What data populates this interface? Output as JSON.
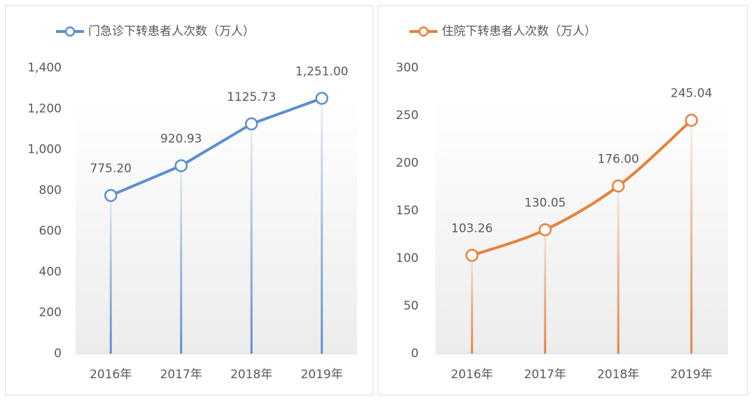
{
  "chart_data": [
    {
      "type": "line",
      "categories": [
        "2016年",
        "2017年",
        "2018年",
        "2019年"
      ],
      "series": [
        {
          "name": "门急诊下转患者人次数（万人）",
          "color": "#5b8fd0",
          "values": [
            775.2,
            920.93,
            1125.73,
            1251.0
          ],
          "value_labels": [
            "775.20",
            "920.93",
            "1125.73",
            "1,251.00"
          ]
        }
      ],
      "ylim": [
        0,
        1400
      ],
      "yticks": [
        0,
        200,
        400,
        600,
        800,
        {
          "value": 1000,
          "label": "1,000"
        },
        {
          "value": 1200,
          "label": "1,200"
        },
        {
          "value": 1400,
          "label": "1,400"
        }
      ],
      "smooth": false,
      "legend": "top"
    },
    {
      "type": "line",
      "categories": [
        "2016年",
        "2017年",
        "2018年",
        "2019年"
      ],
      "series": [
        {
          "name": "住院下转患者人次数（万人）",
          "color": "#e8803a",
          "values": [
            103.26,
            130.05,
            176.0,
            245.04
          ],
          "value_labels": [
            "103.26",
            "130.05",
            "176.00",
            "245.04"
          ]
        }
      ],
      "ylim": [
        0,
        300
      ],
      "yticks": [
        0,
        50,
        100,
        150,
        200,
        250,
        300
      ],
      "smooth": true,
      "legend": "top"
    }
  ]
}
